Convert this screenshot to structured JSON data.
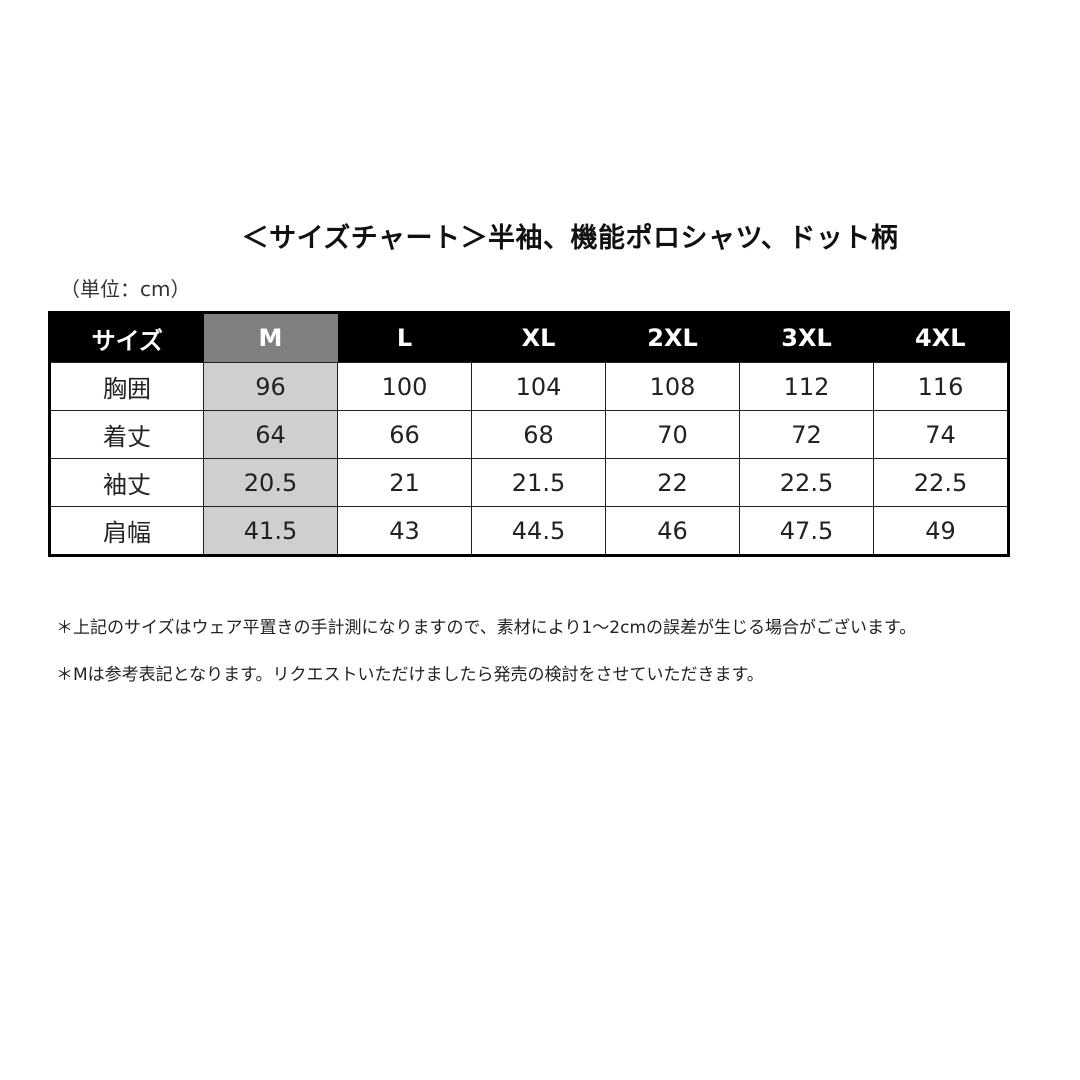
{
  "title": "＜サイズチャート＞半袖、機能ポロシャツ、ドット柄",
  "unit": "（単位：cm）",
  "table": {
    "headers": [
      "サイズ",
      "M",
      "L",
      "XL",
      "2XL",
      "3XL",
      "4XL"
    ],
    "rows": [
      {
        "label": "胸囲",
        "values": [
          "96",
          "100",
          "104",
          "108",
          "112",
          "116"
        ]
      },
      {
        "label": "着丈",
        "values": [
          "64",
          "66",
          "68",
          "70",
          "72",
          "74"
        ]
      },
      {
        "label": "袖丈",
        "values": [
          "20.5",
          "21",
          "21.5",
          "22",
          "22.5",
          "22.5"
        ]
      },
      {
        "label": "肩幅",
        "values": [
          "41.5",
          "43",
          "44.5",
          "46",
          "47.5",
          "49"
        ]
      }
    ],
    "highlight_color_header": "#808080",
    "highlight_color_body": "#cfcfcf"
  },
  "notes": [
    "＊上記のサイズはウェア平置きの手計測になりますので、素材により1～2cmの誤差が生じる場合がございます。",
    "＊Mは参考表記となります。リクエストいただけましたら発売の検討をさせていただきます。"
  ]
}
